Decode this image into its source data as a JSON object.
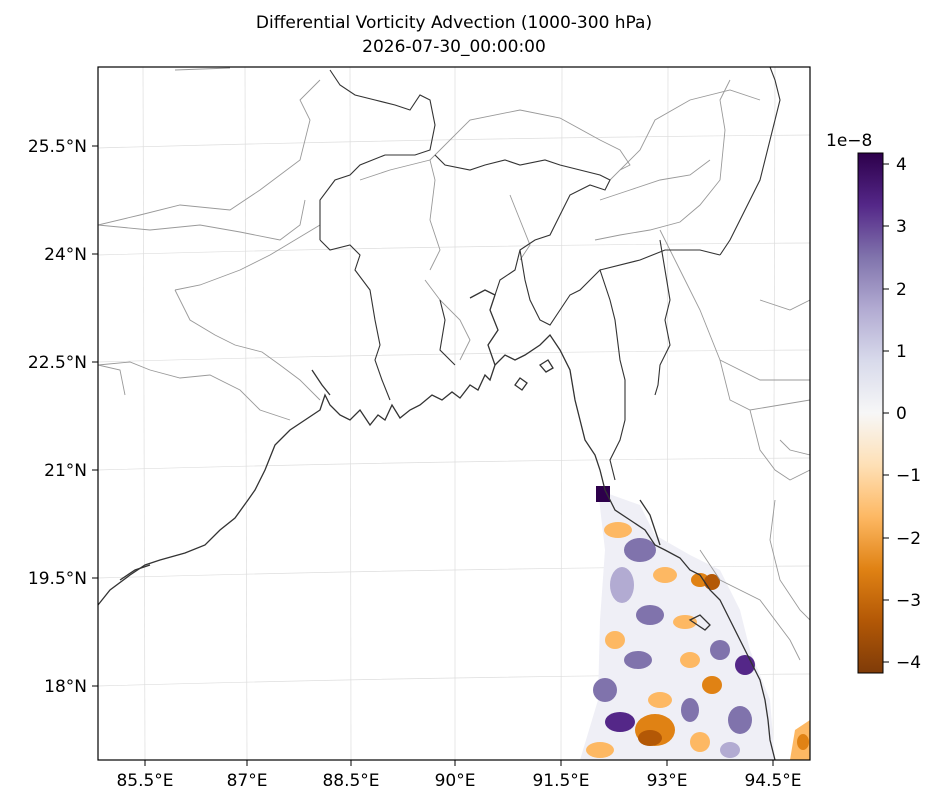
{
  "title": {
    "line1": "Differential Vorticity Advection (1000-300 hPa)",
    "line2": "2026-07-30_00:00:00"
  },
  "map": {
    "lat_ticks": [
      "25.5°N",
      "24°N",
      "22.5°N",
      "21°N",
      "19.5°N",
      "18°N"
    ],
    "lon_ticks": [
      "85.5°E",
      "87°E",
      "88.5°E",
      "90°E",
      "91.5°E",
      "93°E",
      "94.5°E"
    ],
    "extent": {
      "lon": [
        84.9,
        94.9
      ],
      "lat": [
        17.0,
        26.1
      ]
    },
    "colors": {
      "coastline": "#333333",
      "borders": "#999999",
      "gridlines": "#dddddd"
    }
  },
  "colorbar": {
    "exponent_label": "1e−8",
    "tick_labels": [
      "4",
      "3",
      "2",
      "1",
      "0",
      "−1",
      "−2",
      "−3",
      "−4"
    ],
    "range": [
      -4.2,
      4.2
    ],
    "colormap": "PuOr",
    "colors": [
      "#2d004b",
      "#542788",
      "#8073ac",
      "#b2abd2",
      "#d8daeb",
      "#f7f7f7",
      "#fee0b6",
      "#fdb863",
      "#e08214",
      "#b35806",
      "#7f3b08"
    ]
  }
}
